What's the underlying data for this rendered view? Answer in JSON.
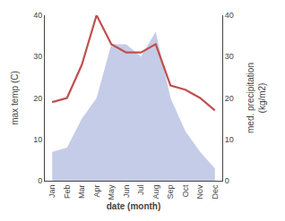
{
  "chart_data": {
    "type": "line",
    "xlabel": "date (month)",
    "ylabel": "max temp (C)",
    "y2label": "med. precipitation\n(kg/m2)",
    "categories": [
      "Jan",
      "Feb",
      "Mar",
      "Apr",
      "May",
      "Jun",
      "Jul",
      "Aug",
      "Sep",
      "Oct",
      "Nov",
      "Dec"
    ],
    "series": [
      {
        "type": "area",
        "axis": "y2",
        "color": "#c5cce8",
        "values": [
          7,
          8,
          15,
          20,
          33,
          33,
          30,
          36,
          20,
          12,
          7,
          3
        ]
      },
      {
        "type": "line",
        "color": "#c0504d",
        "values": [
          19,
          20,
          28,
          40,
          33,
          31,
          31,
          33,
          23,
          22,
          20,
          17
        ]
      }
    ],
    "ylim": [
      0,
      40
    ],
    "yticks": [
      0,
      10,
      20,
      30,
      40
    ],
    "y2lim": [
      0,
      40
    ],
    "y2ticks": [
      0,
      10,
      20,
      30,
      40
    ],
    "grid": false
  }
}
